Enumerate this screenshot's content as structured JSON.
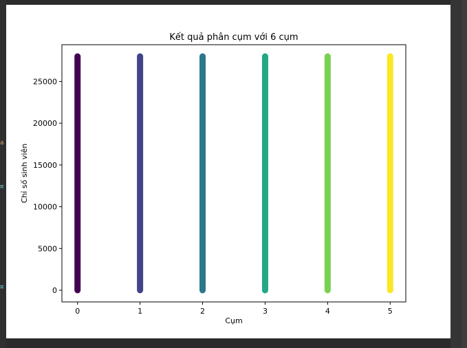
{
  "window": {
    "left_edge_glyphs": [
      "a",
      "≡",
      "≡"
    ]
  },
  "chart_data": {
    "type": "scatter",
    "title": "Kết quả phân cụm với 6 cụm",
    "xlabel": "Cụm",
    "ylabel": "Chỉ số sinh viên",
    "xlim": [
      -0.25,
      5.25
    ],
    "ylim": [
      -1400,
      29400
    ],
    "x_ticks": [
      0,
      1,
      2,
      3,
      4,
      5
    ],
    "y_ticks": [
      0,
      5000,
      10000,
      15000,
      20000,
      25000
    ],
    "grid": false,
    "legend": "none",
    "series": [
      {
        "cluster": 0,
        "y_min": 0,
        "y_max": 28000,
        "color": "#440154"
      },
      {
        "cluster": 1,
        "y_min": 0,
        "y_max": 28000,
        "color": "#414487"
      },
      {
        "cluster": 2,
        "y_min": 0,
        "y_max": 28000,
        "color": "#2a788e"
      },
      {
        "cluster": 3,
        "y_min": 0,
        "y_max": 28000,
        "color": "#22a884"
      },
      {
        "cluster": 4,
        "y_min": 0,
        "y_max": 28000,
        "color": "#7ad151"
      },
      {
        "cluster": 5,
        "y_min": 0,
        "y_max": 28000,
        "color": "#fde725"
      }
    ]
  }
}
